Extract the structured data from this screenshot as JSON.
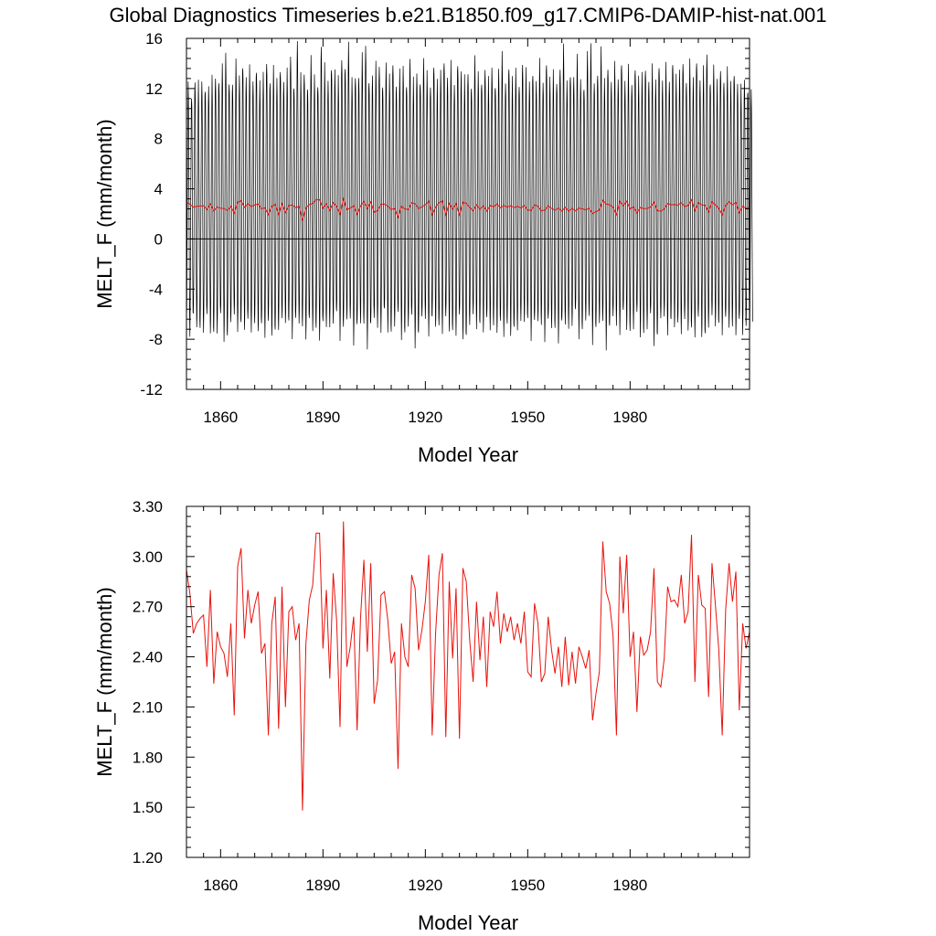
{
  "title": "Global Diagnostics Timeseries b.e21.B1850.f09_g17.CMIP6-DAMIP-hist-nat.001",
  "colors": {
    "monthly": "#000000",
    "annual": "#e8120c",
    "axis": "#000000"
  },
  "chart_data": [
    {
      "type": "line",
      "xlabel": "Model Year",
      "ylabel": "MELT_F (mm/month)",
      "xlim": [
        1850,
        2015
      ],
      "ylim": [
        -12,
        16
      ],
      "x_ticks": [
        1860,
        1890,
        1920,
        1950,
        1980
      ],
      "x_tick_labels": [
        "1860",
        "1890",
        "1920",
        "1950",
        "1980"
      ],
      "y_ticks": [
        -12,
        -8,
        -4,
        0,
        4,
        8,
        12,
        16
      ],
      "y_tick_labels": [
        "-12",
        "-8",
        "-4",
        "0",
        "4",
        "8",
        "12",
        "16"
      ],
      "reference_line_y": 0,
      "series": [
        {
          "style": "monthly",
          "color": "#000000",
          "note_values": "monthly cycle; per-year annual maxima listed (minima approx -6 to -8.5)",
          "years": [
            1850,
            2015
          ],
          "annual_max": [
            12.4,
            11.8,
            12.5,
            12.1,
            12.7,
            12.3,
            11.9,
            12.6,
            13.2,
            12.8,
            13.5,
            14.6,
            12.9,
            12.4,
            13.8,
            13.1,
            14.2,
            12.7,
            13.4,
            12.9,
            13.7,
            12.2,
            13.0,
            14.5,
            12.6,
            13.3,
            12.8,
            13.9,
            12.4,
            13.1,
            14.8,
            12.5,
            15.4,
            12.9,
            13.6,
            12.2,
            14.1,
            13.0,
            12.7,
            15.3,
            13.5,
            12.8,
            14.0,
            13.2,
            12.6,
            14.7,
            13.9,
            15.2,
            12.7,
            13.4,
            12.9,
            14.3,
            15.5,
            13.0,
            12.8,
            13.7,
            14.1,
            12.5,
            13.6,
            12.9,
            14.4,
            12.3,
            13.0,
            13.8,
            12.7,
            14.2,
            12.4,
            13.5,
            12.8,
            14.0,
            13.1,
            12.6,
            13.9,
            12.2,
            13.4,
            14.6,
            12.8,
            13.7,
            12.5,
            14.3,
            13.0,
            12.7,
            13.6,
            12.3,
            14.1,
            13.2,
            12.9,
            13.5,
            12.4,
            13.8,
            12.6,
            13.3,
            14.5,
            12.8,
            13.9,
            12.5,
            13.4,
            12.7,
            14.0,
            13.1,
            12.6,
            13.6,
            12.4,
            13.9,
            12.8,
            14.3,
            12.5,
            13.2,
            12.9,
            13.7,
            15.0,
            12.6,
            13.5,
            12.8,
            14.2,
            13.0,
            12.4,
            14.6,
            15.2,
            12.9,
            13.3,
            14.8,
            12.7,
            14.1,
            12.5,
            13.6,
            12.9,
            14.4,
            12.3,
            13.5,
            12.7,
            13.8,
            12.5,
            13.1,
            14.0,
            12.6,
            13.4,
            12.8,
            14.2,
            12.4,
            13.6,
            12.9,
            14.3,
            12.7,
            13.2,
            14.5,
            12.6,
            13.8,
            12.9,
            14.6,
            12.5,
            13.3,
            15.0,
            12.8,
            13.5,
            12.4,
            13.9,
            12.7,
            13.2,
            12.5,
            13.6,
            12.3,
            11.8,
            12.9,
            12.2,
            11.6
          ]
        },
        {
          "style": "annual-mean",
          "color": "#e8120c",
          "ref": "annual"
        }
      ]
    },
    {
      "type": "line",
      "xlabel": "Model Year",
      "ylabel": "MELT_F (mm/month)",
      "xlim": [
        1850,
        2015
      ],
      "ylim": [
        1.2,
        3.3
      ],
      "x_ticks": [
        1860,
        1890,
        1920,
        1950,
        1980
      ],
      "x_tick_labels": [
        "1860",
        "1890",
        "1920",
        "1950",
        "1980"
      ],
      "y_ticks": [
        1.2,
        1.5,
        1.8,
        2.1,
        2.4,
        2.7,
        3.0,
        3.3
      ],
      "y_tick_labels": [
        "1.20",
        "1.50",
        "1.80",
        "2.10",
        "2.40",
        "2.70",
        "3.00",
        "3.30"
      ],
      "series": [
        {
          "style": "annual-mean",
          "color": "#e8120c",
          "x_start": 1850,
          "x_step": 1,
          "values": [
            2.92,
            2.78,
            2.54,
            2.6,
            2.63,
            2.65,
            2.34,
            2.8,
            2.24,
            2.55,
            2.46,
            2.42,
            2.28,
            2.6,
            2.05,
            2.94,
            3.05,
            2.51,
            2.8,
            2.6,
            2.71,
            2.79,
            2.42,
            2.48,
            1.93,
            2.6,
            2.76,
            1.97,
            2.82,
            2.1,
            2.67,
            2.7,
            2.5,
            2.6,
            1.48,
            2.48,
            2.74,
            2.83,
            3.14,
            3.14,
            2.45,
            2.8,
            2.27,
            2.9,
            2.62,
            1.98,
            3.21,
            2.34,
            2.46,
            2.64,
            1.96,
            2.63,
            2.98,
            2.43,
            2.96,
            2.12,
            2.26,
            2.77,
            2.79,
            2.62,
            2.36,
            2.43,
            1.73,
            2.6,
            2.4,
            2.34,
            2.89,
            2.81,
            2.44,
            2.56,
            2.73,
            3.01,
            1.93,
            2.54,
            2.89,
            3.02,
            1.92,
            2.85,
            2.39,
            2.81,
            1.91,
            2.93,
            2.85,
            2.5,
            2.25,
            2.73,
            2.38,
            2.64,
            2.22,
            2.67,
            2.58,
            2.79,
            2.48,
            2.66,
            2.55,
            2.64,
            2.5,
            2.6,
            2.48,
            2.67,
            2.31,
            2.28,
            2.72,
            2.6,
            2.25,
            2.3,
            2.64,
            2.44,
            2.3,
            2.46,
            2.22,
            2.52,
            2.23,
            2.43,
            2.24,
            2.46,
            2.4,
            2.33,
            2.44,
            2.02,
            2.18,
            2.31,
            3.09,
            2.79,
            2.72,
            2.53,
            1.93,
            3.0,
            2.66,
            3.01,
            2.4,
            2.55,
            2.07,
            2.52,
            2.41,
            2.44,
            2.55,
            2.93,
            2.25,
            2.22,
            2.39,
            2.82,
            2.73,
            2.74,
            2.7,
            2.89,
            2.6,
            2.67,
            3.13,
            2.25,
            2.89,
            2.71,
            2.69,
            2.16,
            2.96,
            2.71,
            2.44,
            1.93,
            2.68,
            2.96,
            2.73,
            2.91,
            2.08,
            2.6,
            2.45,
            2.55
          ]
        }
      ]
    }
  ]
}
